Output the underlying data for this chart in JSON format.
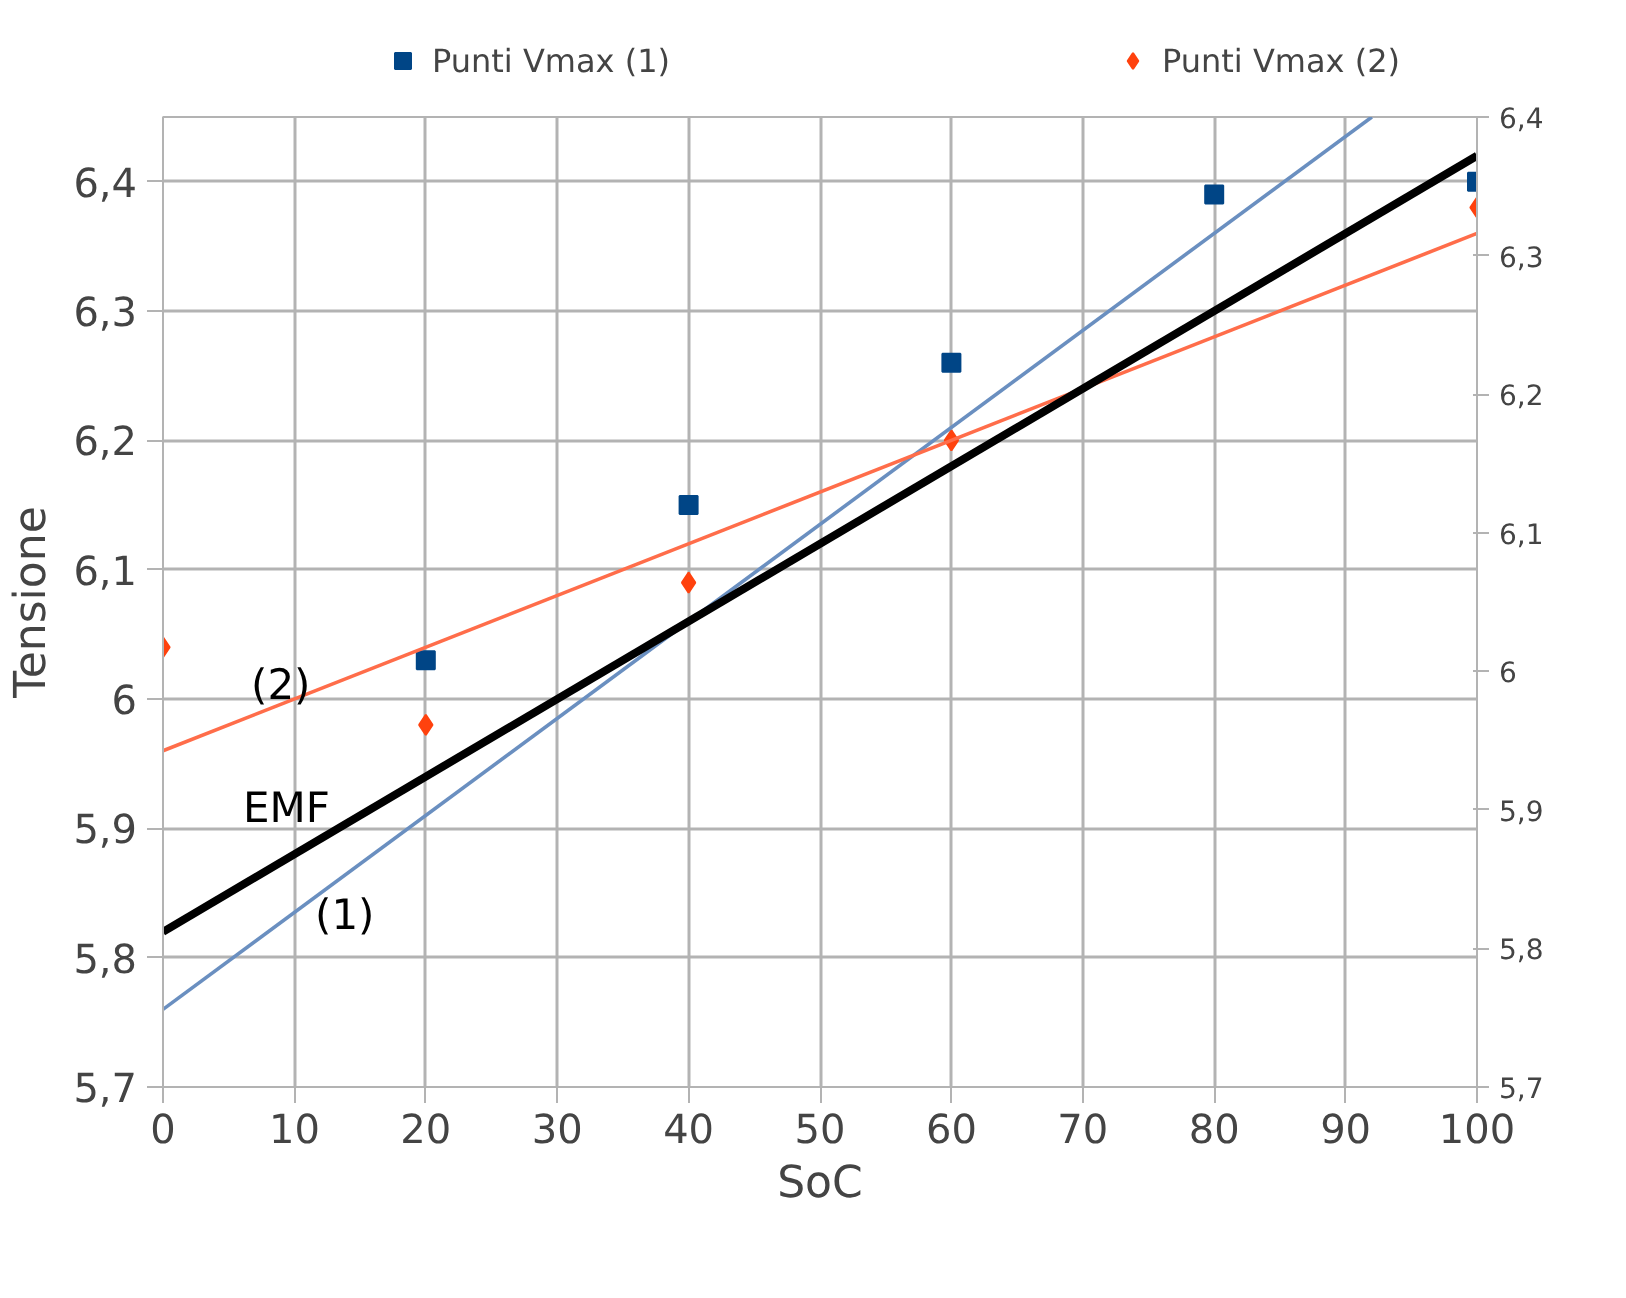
{
  "chart_data": {
    "type": "scatter",
    "xlabel": "SoC",
    "ylabel": "Tensione",
    "x": [
      0,
      20,
      40,
      60,
      80,
      100
    ],
    "series": [
      {
        "name": "Punti Vmax (1)",
        "color": "#004586",
        "marker": "square",
        "values": [
          null,
          6.03,
          6.15,
          6.26,
          6.39,
          6.4
        ]
      },
      {
        "name": "Punti Vmax (2)",
        "color": "#ff420e",
        "marker": "diamond",
        "values": [
          6.04,
          5.98,
          6.09,
          6.2,
          null,
          6.38
        ]
      },
      {
        "type": "line",
        "color": "#6a8fc0",
        "x": [
          0,
          92
        ],
        "values": [
          5.76,
          6.45
        ]
      },
      {
        "type": "line",
        "color": "#ff6d4a",
        "x": [
          0,
          100
        ],
        "values": [
          5.96,
          6.36
        ]
      },
      {
        "type": "line",
        "color": "#000000",
        "x": [
          0,
          100
        ],
        "values": [
          5.82,
          6.42
        ]
      }
    ],
    "annotations": [
      "(1)",
      "(2)",
      "EMF"
    ],
    "xlim": [
      0,
      100
    ],
    "xticks": [
      0,
      10,
      20,
      30,
      40,
      50,
      60,
      70,
      80,
      90,
      100
    ],
    "ylim": [
      5.7,
      6.45
    ],
    "yticks": [
      {
        "value": 5.7,
        "label": "5,7"
      },
      {
        "value": 5.8,
        "label": "5,8"
      },
      {
        "value": 5.9,
        "label": "5,9"
      },
      {
        "value": 6,
        "label": "6"
      },
      {
        "value": 6.1,
        "label": "6,1"
      },
      {
        "value": 6.2,
        "label": "6,2"
      },
      {
        "value": 6.3,
        "label": "6,3"
      },
      {
        "value": 6.4,
        "label": "6,4"
      }
    ],
    "y2lim": [
      5.7,
      6.4
    ],
    "y2ticks": [
      {
        "value": 5.7,
        "label": "5,7"
      },
      {
        "value": 5.8,
        "label": "5,8"
      },
      {
        "value": 5.9,
        "label": "5,9"
      },
      {
        "value": 6,
        "label": "6"
      },
      {
        "value": 6.1,
        "label": "6,1"
      },
      {
        "value": 6.2,
        "label": "6,2"
      },
      {
        "value": 6.3,
        "label": "6,3"
      },
      {
        "value": 6.4,
        "label": "6,4"
      }
    ],
    "grid": true,
    "legend": "top"
  }
}
